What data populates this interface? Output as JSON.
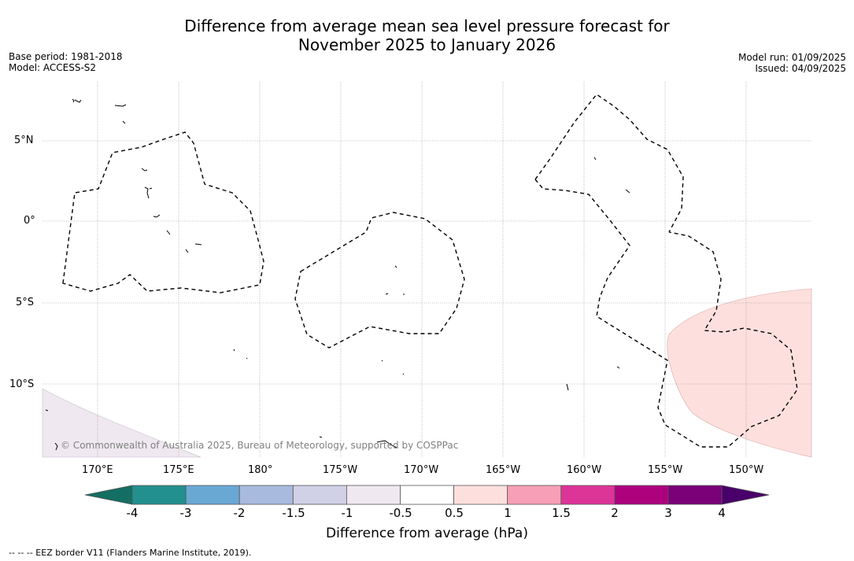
{
  "title_line1": "Difference from average mean sea level pressure forecast for",
  "title_line2": "November 2025 to January 2026",
  "base_period": "Base period: 1981-2018",
  "model": "Model: ACCESS-S2",
  "model_run": "Model run: 01/09/2025",
  "issued": "Issued: 04/09/2025",
  "lat_labels": [
    "5°N",
    "0°",
    "5°S",
    "10°S"
  ],
  "lon_labels": [
    "170°E",
    "175°E",
    "180°",
    "175°W",
    "170°W",
    "165°W",
    "160°W",
    "155°W",
    "150°W"
  ],
  "copyright": "© Commonwealth of Australia 2025, Bureau of Meteorology, supported by COSPPac",
  "colorbar": {
    "labels": [
      "-4",
      "-3",
      "-2",
      "-1.5",
      "-1",
      "-0.5",
      "0.5",
      "1",
      "1.5",
      "2",
      "3",
      "4"
    ],
    "colors": [
      "#136f63",
      "#22908f",
      "#6aa8d4",
      "#a8bade",
      "#d0d0e6",
      "#efe8f0",
      "#ffffff",
      "#fde0dd",
      "#f69fb7",
      "#dd3497",
      "#ae017e",
      "#7a0177",
      "#49006a"
    ],
    "title": "Difference from average (hPa)"
  },
  "footnote": "-- -- -- EEZ border V11 (Flanders Marine Institute, 2019).",
  "colors": {
    "positive_region": "#fde0dd",
    "negative_region": "#efe8f0",
    "grid": "#888888"
  }
}
